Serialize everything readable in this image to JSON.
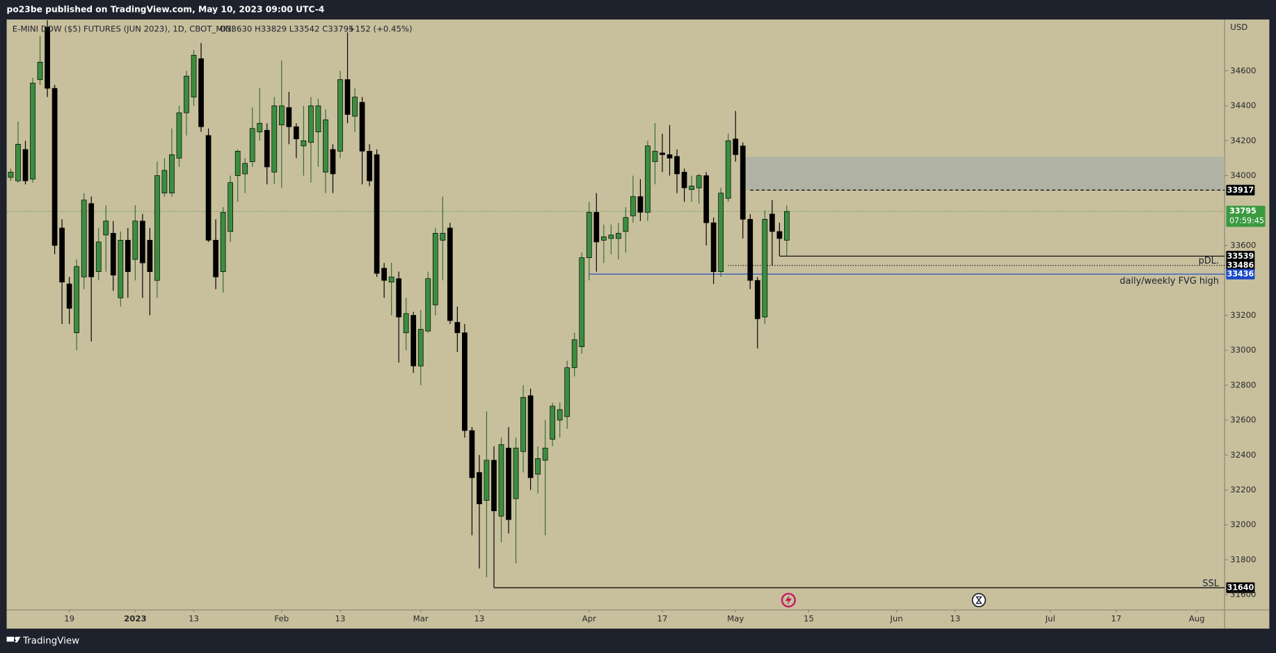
{
  "header": {
    "publisher": "po23be published on TradingView.com, May 10, 2023 09:00 UTC-4",
    "brand": "TradingView"
  },
  "chart_data": {
    "type": "candlestick",
    "symbol": "E-MINI DOW ($5) FUTURES (JUN 2023), 1D, CBOT_MINI",
    "ohlc_text": "O33630 H33829 L33542 C33795",
    "change_text": "+152 (+0.45%)",
    "currency": "USD",
    "countdown": "07:59:45",
    "open": [
      33990,
      33970,
      34150,
      33980,
      34550,
      34850,
      34500,
      33700,
      33380,
      33100,
      33420,
      33840,
      33450,
      33660,
      33670,
      33300,
      33630,
      33520,
      33740,
      33630,
      33400,
      33900,
      33900,
      34100,
      34360,
      34450,
      34670,
      34230,
      33630,
      33450,
      33680,
      34000,
      34010,
      34080,
      34250,
      34260,
      34020,
      34290,
      34390,
      34280,
      34170,
      34190,
      34250,
      34020,
      34150,
      34140,
      34550,
      34340,
      34420,
      34140,
      34120,
      33470,
      33390,
      33410,
      33100,
      33200,
      32910,
      33110,
      33260,
      33630,
      33700,
      33160,
      33100,
      32540,
      32300,
      32140,
      32370,
      32050,
      32440,
      32150,
      32420,
      32740,
      32290,
      32370,
      32490,
      32600,
      32620,
      32900,
      33020,
      33530,
      33790,
      33630,
      33640,
      33640,
      33680,
      33770,
      33880,
      33790,
      34080,
      34130,
      34120,
      34110,
      34020,
      33920,
      33930,
      34000,
      33730,
      33450,
      33870,
      34210,
      34170,
      33750,
      33400,
      33190,
      33780,
      33680,
      33630
    ],
    "high": [
      34040,
      34310,
      34200,
      34560,
      34800,
      34890,
      34520,
      33750,
      33420,
      33520,
      33900,
      33880,
      33700,
      33830,
      33740,
      33680,
      33700,
      33830,
      33780,
      33700,
      34080,
      34100,
      34270,
      34400,
      34600,
      34720,
      34760,
      34270,
      33750,
      33820,
      34000,
      34150,
      34100,
      34390,
      34500,
      34300,
      34450,
      34660,
      34480,
      34300,
      34400,
      34450,
      34440,
      34380,
      34180,
      34600,
      34820,
      34500,
      34450,
      34180,
      34150,
      33500,
      33500,
      33450,
      33300,
      33220,
      33230,
      33450,
      33700,
      33880,
      33730,
      33250,
      33150,
      32560,
      32400,
      32650,
      32450,
      32500,
      32560,
      32500,
      32800,
      32780,
      32450,
      32600,
      32700,
      32700,
      32940,
      33100,
      33560,
      33850,
      33900,
      33720,
      33720,
      33730,
      33820,
      34000,
      33980,
      34200,
      34300,
      34240,
      34290,
      34150,
      34040,
      34000,
      34010,
      34020,
      33760,
      33930,
      34240,
      34370,
      34190,
      33780,
      33420,
      33800,
      33860,
      33730,
      33829
    ],
    "low": [
      33970,
      33960,
      33950,
      33960,
      34520,
      34450,
      33550,
      33150,
      33150,
      33000,
      33350,
      33050,
      33400,
      33450,
      33340,
      33250,
      33300,
      33400,
      33300,
      33200,
      33300,
      33880,
      33880,
      34050,
      34230,
      34400,
      34250,
      33620,
      33350,
      33330,
      33620,
      33850,
      33900,
      34050,
      34200,
      33950,
      33950,
      33930,
      34180,
      34100,
      34000,
      33960,
      34050,
      33900,
      33900,
      34100,
      34300,
      34250,
      33950,
      33940,
      33420,
      33300,
      33200,
      32930,
      33000,
      32870,
      32800,
      33100,
      33200,
      33400,
      33150,
      32990,
      32500,
      31940,
      31750,
      31700,
      31640,
      31900,
      31950,
      31780,
      32300,
      32200,
      32180,
      31940,
      32450,
      32500,
      32550,
      32850,
      32980,
      33400,
      33450,
      33500,
      33550,
      33520,
      33560,
      33730,
      33740,
      33740,
      33950,
      34020,
      34000,
      33900,
      33850,
      33850,
      33840,
      33600,
      33380,
      33420,
      33850,
      34080,
      33640,
      33350,
      33010,
      33150,
      33486,
      33539,
      33542
    ],
    "close": [
      34020,
      34180,
      33970,
      34530,
      34650,
      34500,
      33600,
      33390,
      33240,
      33480,
      33860,
      33420,
      33620,
      33740,
      33430,
      33630,
      33450,
      33740,
      33500,
      33450,
      34000,
      34030,
      34120,
      34360,
      34570,
      34690,
      34280,
      33630,
      33420,
      33790,
      33960,
      34140,
      34070,
      34270,
      34300,
      34050,
      34400,
      34400,
      34280,
      34210,
      34200,
      34400,
      34400,
      34320,
      34010,
      34550,
      34350,
      34450,
      34140,
      33970,
      33440,
      33400,
      33420,
      33190,
      33210,
      32910,
      33120,
      33410,
      33670,
      33670,
      33170,
      33100,
      32540,
      32270,
      32120,
      32370,
      32080,
      32460,
      32030,
      32440,
      32730,
      32270,
      32380,
      32440,
      32680,
      32660,
      32900,
      33060,
      33530,
      33790,
      33620,
      33650,
      33660,
      33670,
      33760,
      33880,
      33790,
      34170,
      34140,
      34120,
      34100,
      34010,
      33930,
      33940,
      34000,
      33730,
      33450,
      33900,
      34200,
      34120,
      33750,
      33400,
      33180,
      33750,
      33680,
      33640,
      33795
    ],
    "up_color": "#3b8e3f",
    "down_color": "#000000",
    "xlim": [
      -0.56,
      165.8
    ],
    "xticks": [
      {
        "value": 8,
        "label": "19"
      },
      {
        "value": 17,
        "label": "2023"
      },
      {
        "value": 25,
        "label": "13"
      },
      {
        "value": 37,
        "label": "Feb"
      },
      {
        "value": 45,
        "label": "13"
      },
      {
        "value": 56,
        "label": "Mar"
      },
      {
        "value": 64,
        "label": "13"
      },
      {
        "value": 79,
        "label": "Apr"
      },
      {
        "value": 89,
        "label": "17"
      },
      {
        "value": 99,
        "label": "May"
      },
      {
        "value": 109,
        "label": "15"
      },
      {
        "value": 121,
        "label": "Jun"
      },
      {
        "value": 129,
        "label": "13"
      },
      {
        "value": 142,
        "label": "Jul"
      },
      {
        "value": 151,
        "label": "17"
      },
      {
        "value": 162,
        "label": "Aug"
      }
    ],
    "ylim": [
      31513,
      34894
    ],
    "yticks": [
      31600,
      31800,
      32000,
      32200,
      32400,
      32600,
      32800,
      33000,
      33200,
      33600,
      34000,
      34200,
      34400,
      34600
    ],
    "zone": {
      "from": 100,
      "top": 34107,
      "bottom": 33917,
      "color": "#b0b3a4"
    },
    "levels": [
      {
        "value": 33917,
        "from": 101,
        "style": "dashed",
        "color": "#000000"
      },
      {
        "value": 33539,
        "from": 105,
        "style": "solid",
        "color": "#000000"
      },
      {
        "value": 33486,
        "from": 98,
        "style": "dotted",
        "color": "#000000",
        "label": "pDL."
      },
      {
        "value": 33436,
        "from": 79,
        "style": "solid",
        "color": "#1848c8",
        "label": "daily/weekly FVG high"
      },
      {
        "value": 31640,
        "from": 66,
        "style": "solid",
        "color": "#000000",
        "label": "SSL"
      }
    ]
  }
}
